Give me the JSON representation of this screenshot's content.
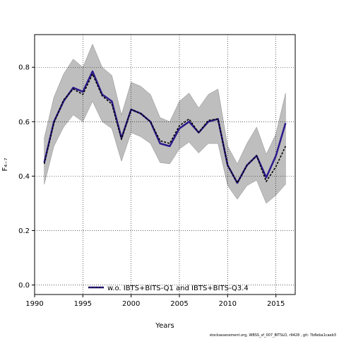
{
  "chart_data": {
    "type": "line",
    "xlabel": "Years",
    "ylabel": "F₄₋₇",
    "xlim": [
      1990,
      2017
    ],
    "ylim": [
      -0.035,
      0.92
    ],
    "xticks": [
      1990,
      1995,
      2000,
      2005,
      2010,
      2015
    ],
    "yticks": [
      0.0,
      0.2,
      0.4,
      0.6,
      0.8
    ],
    "ytick_labels": [
      "0.0",
      "0.2",
      "0.4",
      "0.6",
      "0.8"
    ],
    "grid": true,
    "legend_position": "bottom-center",
    "x": [
      1991,
      1992,
      1993,
      1994,
      1995,
      1996,
      1997,
      1998,
      1999,
      2000,
      2001,
      2002,
      2003,
      2004,
      2005,
      2006,
      2007,
      2008,
      2009,
      2010,
      2011,
      2012,
      2013,
      2014,
      2015,
      2016
    ],
    "band": {
      "color": "#bebebe",
      "lower": [
        0.37,
        0.51,
        0.58,
        0.625,
        0.6,
        0.675,
        0.6,
        0.575,
        0.455,
        0.56,
        0.545,
        0.52,
        0.45,
        0.445,
        0.5,
        0.525,
        0.485,
        0.52,
        0.52,
        0.365,
        0.315,
        0.365,
        0.385,
        0.3,
        0.33,
        0.37
      ],
      "upper": [
        0.54,
        0.69,
        0.775,
        0.83,
        0.8,
        0.885,
        0.8,
        0.77,
        0.625,
        0.745,
        0.73,
        0.7,
        0.615,
        0.6,
        0.675,
        0.705,
        0.65,
        0.7,
        0.72,
        0.51,
        0.445,
        0.52,
        0.58,
        0.48,
        0.555,
        0.705
      ]
    },
    "series": [
      {
        "name": "",
        "style": "solid",
        "color": "#2b1a8c",
        "values": [
          0.45,
          0.6,
          0.675,
          0.725,
          0.71,
          0.785,
          0.7,
          0.675,
          0.54,
          0.645,
          0.63,
          0.6,
          0.52,
          0.51,
          0.575,
          0.6,
          0.56,
          0.6,
          0.61,
          0.44,
          0.375,
          0.44,
          0.475,
          0.395,
          0.475,
          0.595
        ]
      },
      {
        "name": "w.o. IBTS+BITS-Q1 and IBTS+BITS-Q3.4",
        "style": "dashed",
        "color": "#000000",
        "values": [
          0.445,
          0.595,
          0.68,
          0.72,
          0.7,
          0.775,
          0.695,
          0.665,
          0.535,
          0.645,
          0.63,
          0.6,
          0.53,
          0.52,
          0.585,
          0.61,
          0.56,
          0.605,
          0.61,
          0.44,
          0.375,
          0.44,
          0.475,
          0.38,
          0.435,
          0.51
        ]
      }
    ],
    "legend_label": "w.o. IBTS+BITS-Q1 and IBTS+BITS-Q3.4"
  },
  "footer": "stockassessment.org,  WBSS_sf_007_BITSLO,  r9428 ,  git: 7b8eba1caeb3"
}
